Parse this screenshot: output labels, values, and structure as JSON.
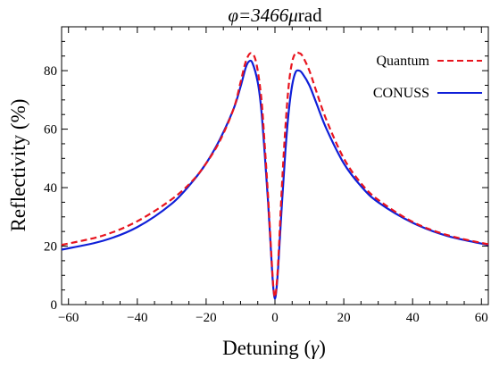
{
  "chart_data": {
    "type": "line",
    "title_prefix": "φ=3466",
    "title_unit_greek": "μ",
    "title_unit_rest": "rad",
    "xlabel_text": "Detuning (",
    "xlabel_symbol": "γ",
    "xlabel_close": ")",
    "ylabel": "Reflectivity (%)",
    "xlim": [
      -62,
      62
    ],
    "ylim": [
      0,
      95
    ],
    "x_ticks": [
      -60,
      -40,
      -20,
      0,
      20,
      40,
      60
    ],
    "y_ticks": [
      0,
      20,
      40,
      60,
      80
    ],
    "x_tick_labels": [
      "−60",
      "−40",
      "−20",
      "0",
      "20",
      "40",
      "60"
    ],
    "y_tick_labels": [
      "0",
      "20",
      "40",
      "60",
      "80"
    ],
    "grid": false,
    "legend_position": "top-right",
    "series": [
      {
        "name": "Quantum",
        "color": "#e8141e",
        "dash": "dashed",
        "points": [
          [
            -62,
            20.4
          ],
          [
            -50,
            23.6
          ],
          [
            -40,
            28.5
          ],
          [
            -30,
            36.0
          ],
          [
            -24,
            42.3
          ],
          [
            -20,
            48.3
          ],
          [
            -16,
            56.0
          ],
          [
            -12,
            67.0
          ],
          [
            -10,
            76.0
          ],
          [
            -8.5,
            83.0
          ],
          [
            -7,
            86.0
          ],
          [
            -5.5,
            83.0
          ],
          [
            -4,
            71.0
          ],
          [
            -3,
            55.0
          ],
          [
            -2,
            37.0
          ],
          [
            -1,
            16.0
          ],
          [
            -0.5,
            6.5
          ],
          [
            0,
            2.5
          ],
          [
            0.5,
            7.0
          ],
          [
            1,
            16.0
          ],
          [
            2,
            40.0
          ],
          [
            3,
            60.0
          ],
          [
            4,
            75.0
          ],
          [
            5,
            83.0
          ],
          [
            6,
            86.0
          ],
          [
            7,
            86.0
          ],
          [
            8,
            85.0
          ],
          [
            10,
            80.0
          ],
          [
            12,
            73.0
          ],
          [
            15,
            63.0
          ],
          [
            20,
            50.0
          ],
          [
            25,
            41.5
          ],
          [
            30,
            35.8
          ],
          [
            40,
            28.3
          ],
          [
            50,
            23.8
          ],
          [
            62,
            20.6
          ]
        ]
      },
      {
        "name": "CONUSS",
        "color": "#0f1fd8",
        "dash": "solid",
        "points": [
          [
            -62,
            18.8
          ],
          [
            -50,
            21.8
          ],
          [
            -40,
            26.5
          ],
          [
            -30,
            34.5
          ],
          [
            -24,
            42.0
          ],
          [
            -20,
            48.3
          ],
          [
            -16,
            56.5
          ],
          [
            -12,
            67.0
          ],
          [
            -10,
            74.5
          ],
          [
            -8.5,
            81.0
          ],
          [
            -7.5,
            83.2
          ],
          [
            -6.5,
            82.5
          ],
          [
            -5,
            76.0
          ],
          [
            -4,
            67.0
          ],
          [
            -3,
            52.0
          ],
          [
            -2,
            35.0
          ],
          [
            -1,
            15.0
          ],
          [
            -0.5,
            6.0
          ],
          [
            0,
            2.0
          ],
          [
            0.5,
            6.0
          ],
          [
            1,
            14.0
          ],
          [
            2,
            34.0
          ],
          [
            3,
            52.0
          ],
          [
            4,
            66.0
          ],
          [
            5,
            75.0
          ],
          [
            6,
            79.5
          ],
          [
            7,
            80.0
          ],
          [
            8,
            79.0
          ],
          [
            10,
            75.0
          ],
          [
            12,
            69.0
          ],
          [
            15,
            60.0
          ],
          [
            20,
            48.3
          ],
          [
            25,
            40.5
          ],
          [
            30,
            35.0
          ],
          [
            40,
            28.0
          ],
          [
            50,
            23.5
          ],
          [
            62,
            20.4
          ]
        ]
      }
    ]
  }
}
